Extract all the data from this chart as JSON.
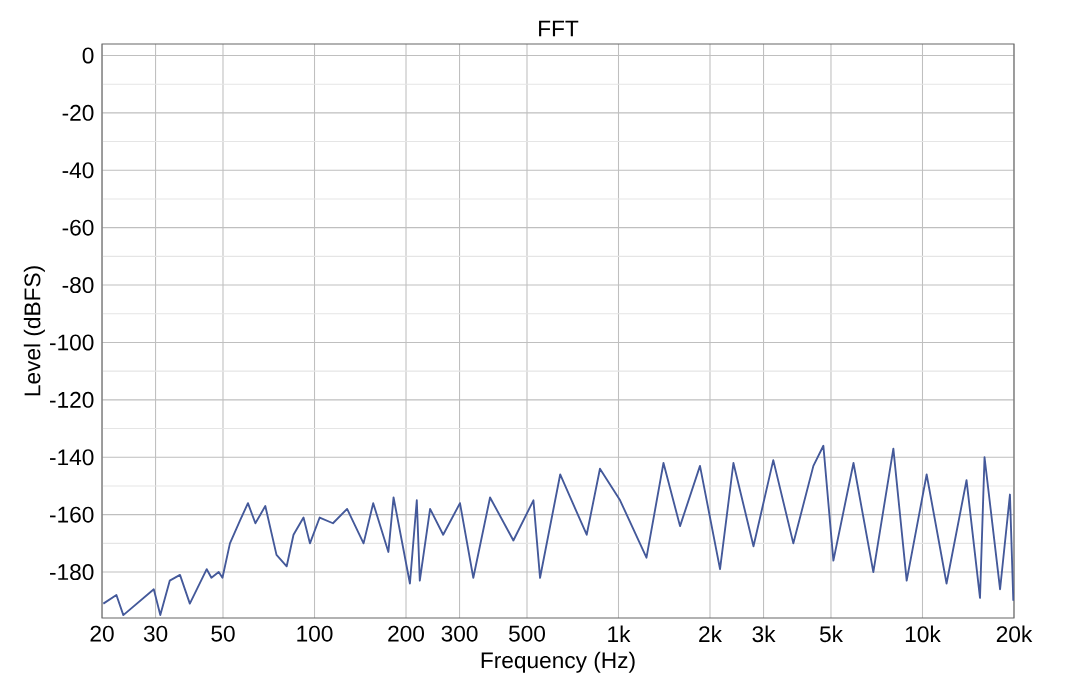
{
  "chart_data": {
    "type": "line",
    "title": "FFT",
    "xlabel": "Frequency (Hz)",
    "ylabel": "Level (dBFS)",
    "log": "x",
    "grid": true,
    "xlim": [
      20,
      20000
    ],
    "ylim": [
      -196,
      4
    ],
    "xticks": [
      20,
      30,
      50,
      100,
      200,
      300,
      500,
      {
        "value": 1000,
        "label": "1k"
      },
      {
        "value": 2000,
        "label": "2k"
      },
      {
        "value": 3000,
        "label": "3k"
      },
      {
        "value": 5000,
        "label": "5k"
      },
      {
        "value": 10000,
        "label": "10k"
      },
      {
        "value": 20000,
        "label": "20k"
      }
    ],
    "yticks": [
      0,
      -20,
      -40,
      -60,
      -80,
      -100,
      -120,
      -140,
      -160,
      -180
    ],
    "x": [
      20.2,
      22.3,
      23.5,
      29.6,
      31.1,
      33.4,
      36.1,
      38.9,
      44.2,
      45.8,
      48.4,
      49.8,
      52.7,
      56.9,
      60.4,
      63.9,
      68.9,
      75,
      81,
      85.3,
      92,
      96.6,
      104,
      115,
      128,
      145,
      156,
      175,
      182,
      206,
      217,
      222,
      240,
      265,
      301,
      333,
      378,
      451,
      525,
      552,
      643,
      786,
      869,
      1012,
      1236,
      1406,
      1594,
      1854,
      2158,
      2388,
      2780,
      3230,
      3760,
      4376,
      4720,
      5092,
      5930,
      6892,
      8020,
      8872,
      10320,
      12000,
      13960,
      15460,
      16000,
      18000,
      19400,
      19900
    ],
    "series": [
      {
        "color": "#44599a",
        "values": [
          -191,
          -188,
          -195,
          -186,
          -195,
          -183,
          -181,
          -191,
          -179,
          -182,
          -180,
          -182,
          -170,
          -162,
          -156,
          -163,
          -157,
          -174,
          -178,
          -167,
          -161,
          -170,
          -161,
          -163,
          -158,
          -170,
          -156,
          -173,
          -154,
          -184,
          -155,
          -183,
          -158,
          -167,
          -156,
          -182,
          -154,
          -169,
          -155,
          -182,
          -146,
          -167,
          -144,
          -155,
          -175,
          -142,
          -164,
          -143,
          -179,
          -142,
          -171,
          -141,
          -170,
          -143,
          -136,
          -176,
          -142,
          -180,
          -137,
          -183,
          -146,
          -184,
          -148,
          -189,
          -140,
          -186,
          -153,
          -190
        ]
      }
    ]
  }
}
